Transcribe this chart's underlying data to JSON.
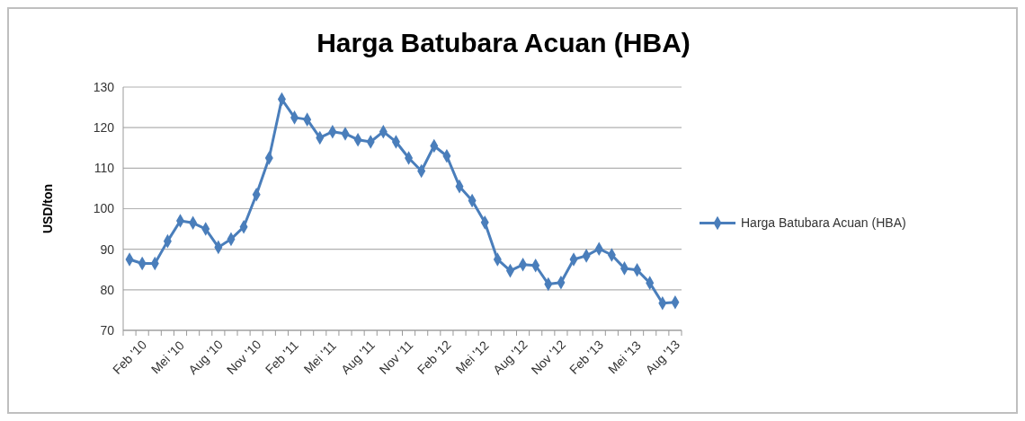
{
  "chart_data": {
    "type": "line",
    "title": "Harga Batubara Acuan (HBA)",
    "ylabel": "USD/ton",
    "categories": [
      "Feb '10",
      null,
      null,
      "Mei '10",
      null,
      null,
      "Aug '10",
      null,
      null,
      "Nov '10",
      null,
      null,
      "Feb '11",
      null,
      null,
      "Mei '11",
      null,
      null,
      "Aug '11",
      null,
      null,
      "Nov '11",
      null,
      null,
      "Feb '12",
      null,
      null,
      "Mei '12",
      null,
      null,
      "Aug '12",
      null,
      null,
      "Nov '12",
      null,
      null,
      "Feb '13",
      null,
      null,
      "Mei '13",
      null,
      null,
      "Aug '13",
      null
    ],
    "series": [
      {
        "name": "Harga Batubara Acuan (HBA)",
        "color": "#4a7ebb",
        "values": [
          87.5,
          86.5,
          86.5,
          92,
          97,
          96.5,
          95,
          90.5,
          92.5,
          95.5,
          103.5,
          112.5,
          127,
          122.5,
          122,
          117.5,
          119,
          118.5,
          117,
          116.5,
          119,
          116.5,
          112.5,
          109.3,
          115.5,
          113,
          105.5,
          102,
          96.6,
          87.5,
          84.7,
          86.2,
          86,
          81.4,
          81.8,
          87.5,
          88.4,
          90.1,
          88.6,
          85.3,
          84.9,
          81.7,
          76.7,
          76.9
        ]
      }
    ],
    "ylim": [
      70,
      130
    ],
    "yticks": [
      70,
      80,
      90,
      100,
      110,
      120,
      130
    ],
    "grid": "y",
    "legend": "right",
    "marker": "diamond",
    "line_style": "solid"
  }
}
